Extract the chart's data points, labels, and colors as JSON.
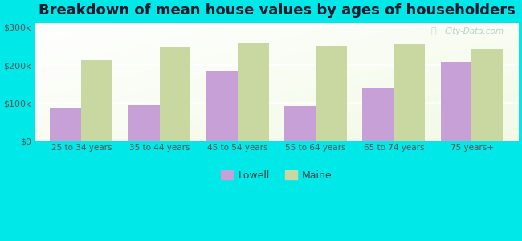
{
  "title": "Breakdown of mean house values by ages of householders",
  "categories": [
    "25 to 34 years",
    "35 to 44 years",
    "45 to 54 years",
    "55 to 64 years",
    "65 to 74 years",
    "75 years+"
  ],
  "lowell_values": [
    88000,
    93000,
    183000,
    91000,
    138000,
    208000
  ],
  "maine_values": [
    213000,
    248000,
    258000,
    252000,
    255000,
    243000
  ],
  "lowell_color": "#c8a0d8",
  "maine_color": "#c8d8a0",
  "background_color": "#00e8e8",
  "plot_bg_color": "#e8f5e8",
  "ylabel_ticks": [
    "$0",
    "$100k",
    "$200k",
    "$300k"
  ],
  "ytick_values": [
    0,
    100000,
    200000,
    300000
  ],
  "ylim": [
    0,
    310000
  ],
  "legend_labels": [
    "Lowell",
    "Maine"
  ],
  "title_fontsize": 13,
  "bar_width": 0.4,
  "watermark": "City-Data.com"
}
